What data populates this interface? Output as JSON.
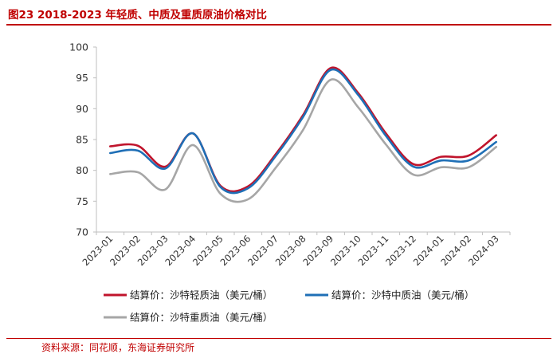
{
  "header": {
    "title": "图23 2018-2023 年轻质、中质及重质原油价格对比"
  },
  "footer": {
    "source": "资料来源：同花顺，东海证券研究所"
  },
  "chart_data": {
    "type": "line",
    "title": "",
    "xlabel": "",
    "ylabel": "",
    "ylim": [
      70,
      100
    ],
    "yticks": [
      70,
      75,
      80,
      85,
      90,
      95,
      100
    ],
    "grid": false,
    "legend": "bottom",
    "categories": [
      "2023-01",
      "2023-02",
      "2023-03",
      "2023-04",
      "2023-05",
      "2023-06",
      "2023-07",
      "2023-08",
      "2023-09",
      "2023-10",
      "2023-11",
      "2023-12",
      "2024-01",
      "2024-02",
      "2024-03"
    ],
    "series": [
      {
        "name": "结算价：沙特轻质油（美元/桶）",
        "color": "#c0142c",
        "values": [
          83.9,
          84.0,
          80.6,
          86.0,
          77.5,
          77.4,
          82.6,
          89.0,
          96.6,
          92.5,
          86.0,
          81.0,
          82.2,
          82.4,
          85.7
        ]
      },
      {
        "name": "结算价：沙特中质油（美元/桶）",
        "color": "#1f6fb6",
        "values": [
          82.8,
          83.2,
          80.3,
          86.0,
          77.3,
          77.1,
          82.3,
          88.7,
          96.3,
          92.2,
          85.6,
          80.6,
          81.6,
          81.6,
          84.6
        ]
      },
      {
        "name": "结算价：沙特重质油（美元/桶）",
        "color": "#a6a6a6",
        "values": [
          79.4,
          79.7,
          76.9,
          84.1,
          76.2,
          75.3,
          80.4,
          86.6,
          94.7,
          90.2,
          84.2,
          79.3,
          80.5,
          80.5,
          83.8
        ]
      }
    ]
  }
}
